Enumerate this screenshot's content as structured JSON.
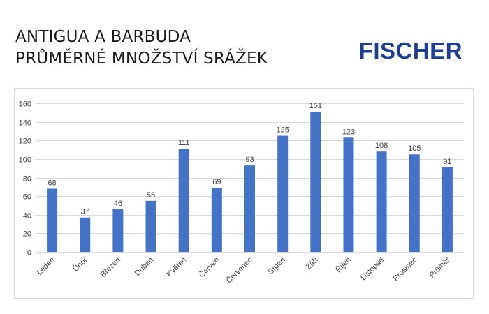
{
  "header": {
    "title_line1": "ANTIGUA A BARBUDA",
    "title_line2": "PRŮMĚRNÉ MNOŽSTVÍ SRÁŽEK",
    "brand": "FISCHER"
  },
  "colors": {
    "bar": "#4472c4",
    "brand": "#1f3f8c",
    "grid": "#d9d9d9"
  },
  "chart_data": {
    "type": "bar",
    "categories": [
      "Leden",
      "Únor",
      "Březen",
      "Duben",
      "Květen",
      "Červen",
      "Červenec",
      "Srpen",
      "Září",
      "Říjen",
      "Listopad",
      "Prosinec",
      "Průměr"
    ],
    "values": [
      68,
      37,
      46,
      55,
      111,
      69,
      93,
      125,
      151,
      123,
      108,
      105,
      91
    ],
    "ylim": [
      0,
      160
    ],
    "yticks": [
      0,
      20,
      40,
      60,
      80,
      100,
      120,
      140,
      160
    ],
    "grid": true,
    "data_labels": true,
    "legend": "none"
  }
}
